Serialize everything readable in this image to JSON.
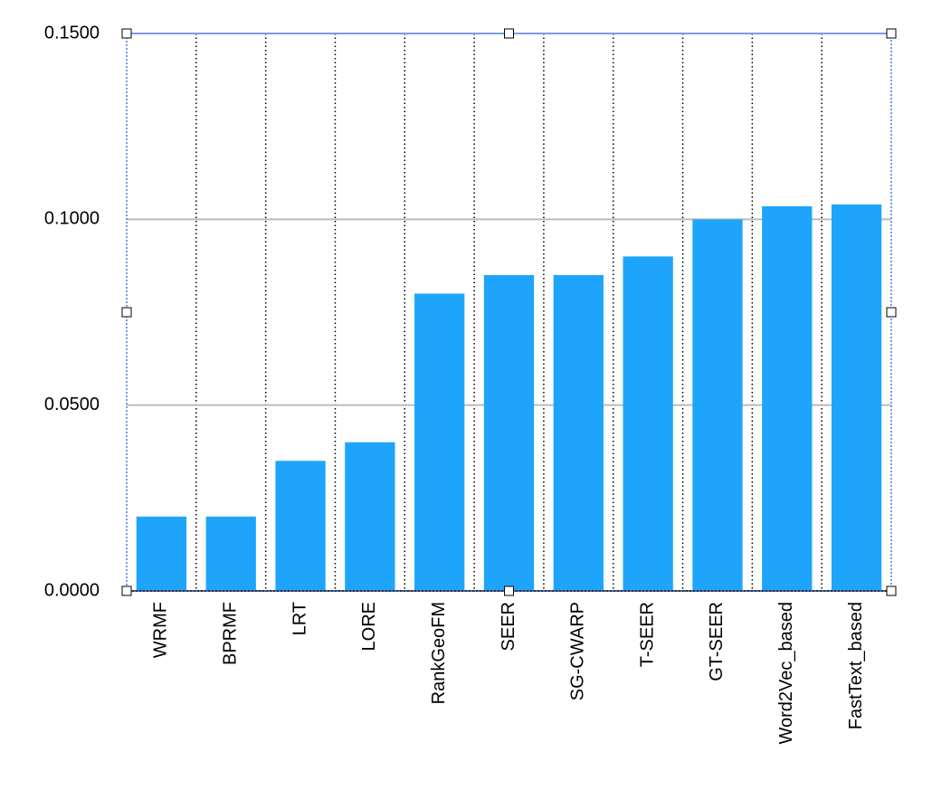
{
  "chart_data": {
    "type": "bar",
    "categories": [
      "WRMF",
      "BPRMF",
      "LRT",
      "LORE",
      "RankGeoFM",
      "SEER",
      "SG-CWARP",
      "T-SEER",
      "GT-SEER",
      "Word2Vec_based",
      "FastText_based"
    ],
    "values": [
      0.02,
      0.02,
      0.035,
      0.04,
      0.08,
      0.085,
      0.085,
      0.09,
      0.1,
      0.1035,
      0.104
    ],
    "color": "#1ea5fb",
    "ylim": [
      0,
      0.15
    ],
    "yticks": [
      {
        "value": 0,
        "label": "0.0000"
      },
      {
        "value": 0.05,
        "label": "0.0500"
      },
      {
        "value": 0.1,
        "label": "0.1000"
      },
      {
        "value": 0.15,
        "label": "0.1500"
      }
    ],
    "grid": true
  }
}
